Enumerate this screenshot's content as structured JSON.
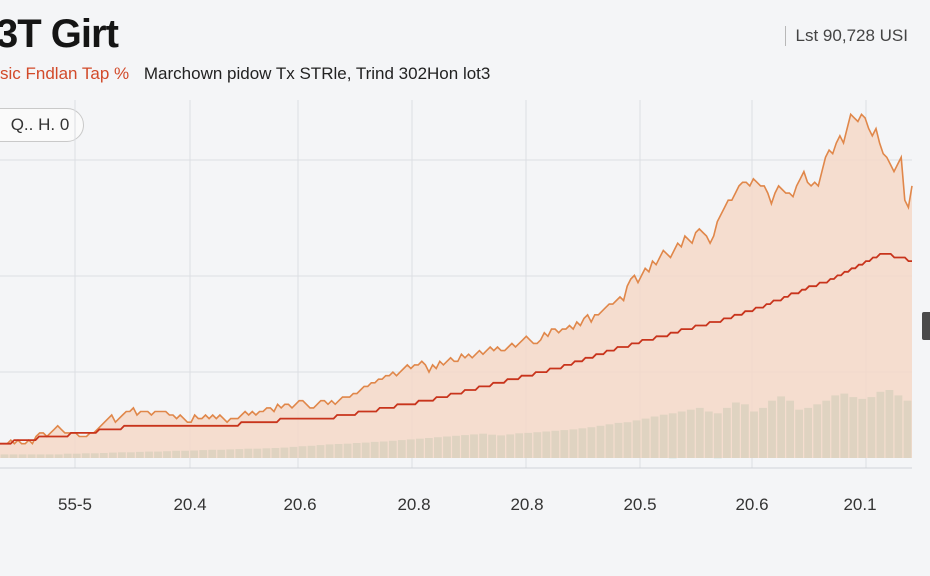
{
  "header": {
    "title": "3T Girt",
    "price": "Lst 90,728 USI",
    "subtitle_accent": "sic Fndlan Tap %",
    "subtitle": "Marchown pidow Tx STRle, Trind 302Hon lot3"
  },
  "controls": {
    "range_label": "Q.. H. 0"
  },
  "colors": {
    "price_line": "#e0874a",
    "price_fill": "#f4d8c8",
    "trend_line": "#c8341c",
    "volume_bar": "#4fa886",
    "grid": "#dcdfe3"
  },
  "chart_data": {
    "type": "line",
    "x_tick_labels": [
      "55-5",
      "20.4",
      "20.6",
      "20.8",
      "20.8",
      "20.5",
      "20.6",
      "20.1"
    ],
    "ylim": [
      0,
      100
    ],
    "grid": true,
    "legend": "none",
    "series": [
      {
        "kind": "area-line",
        "values": [
          4,
          4,
          4,
          5,
          4,
          5,
          4,
          4,
          5,
          4,
          6,
          7,
          7,
          6,
          7,
          8,
          9,
          8,
          7,
          7,
          7,
          7,
          6,
          6,
          6,
          7,
          7,
          8,
          9,
          10,
          11,
          12,
          10,
          11,
          12,
          13,
          13,
          14,
          12,
          13,
          13,
          13,
          12,
          13,
          13,
          13,
          13,
          12,
          12,
          11,
          12,
          11,
          10,
          10,
          12,
          11,
          11,
          12,
          11,
          12,
          11,
          12,
          11,
          10,
          11,
          11,
          11,
          12,
          13,
          12,
          13,
          12,
          13,
          13,
          14,
          14,
          13,
          15,
          14,
          15,
          15,
          14,
          15,
          16,
          16,
          15,
          14,
          14,
          15,
          16,
          16,
          15,
          16,
          15,
          16,
          17,
          17,
          17,
          18,
          18,
          19,
          20,
          20,
          21,
          21,
          22,
          22,
          23,
          23,
          24,
          23,
          24,
          25,
          26,
          25,
          26,
          26,
          27,
          26,
          24,
          26,
          25,
          27,
          26,
          27,
          28,
          27,
          27,
          29,
          28,
          29,
          28,
          29,
          30,
          29,
          30,
          31,
          30,
          31,
          30,
          30,
          31,
          32,
          31,
          32,
          33,
          34,
          33,
          32,
          32,
          33,
          35,
          34,
          36,
          36,
          35,
          36,
          36,
          37,
          36,
          38,
          37,
          39,
          40,
          38,
          40,
          40,
          41,
          42,
          43,
          43,
          44,
          45,
          44,
          48,
          50,
          51,
          49,
          51,
          53,
          52,
          55,
          54,
          56,
          58,
          57,
          56,
          58,
          60,
          59,
          62,
          61,
          60,
          63,
          64,
          63,
          62,
          60,
          62,
          66,
          68,
          70,
          72,
          72,
          74,
          76,
          77,
          77,
          76,
          78,
          77,
          76,
          76,
          74,
          71,
          74,
          76,
          75,
          74,
          74,
          73,
          76,
          78,
          80,
          77,
          76,
          77,
          76,
          80,
          84,
          86,
          85,
          88,
          90,
          88,
          92,
          96,
          95,
          94,
          96,
          95,
          92,
          90,
          92,
          88,
          85,
          84,
          82,
          80,
          82,
          84,
          72,
          70,
          76
        ]
      },
      {
        "kind": "trend-line",
        "values": [
          4,
          4,
          4,
          4,
          5,
          5,
          5,
          5,
          5,
          5,
          5,
          6,
          6,
          6,
          6,
          6,
          6,
          6,
          6,
          6,
          7,
          7,
          7,
          7,
          7,
          7,
          7,
          7,
          8,
          8,
          8,
          8,
          8,
          8,
          8,
          9,
          9,
          9,
          9,
          9,
          9,
          9,
          9,
          9,
          9,
          9,
          9,
          9,
          9,
          9,
          9,
          9,
          9,
          9,
          9,
          9,
          9,
          9,
          9,
          9,
          9,
          9,
          9,
          9,
          9,
          9,
          9,
          9,
          10,
          10,
          10,
          10,
          10,
          10,
          10,
          10,
          10,
          10,
          10,
          11,
          11,
          11,
          11,
          11,
          11,
          11,
          11,
          11,
          11,
          11,
          11,
          11,
          11,
          11,
          11,
          12,
          12,
          12,
          12,
          12,
          12,
          13,
          13,
          13,
          13,
          13,
          13,
          14,
          14,
          14,
          14,
          14,
          15,
          15,
          15,
          15,
          15,
          15,
          16,
          16,
          16,
          16,
          16,
          17,
          17,
          17,
          17,
          18,
          18,
          18,
          18,
          19,
          19,
          19,
          19,
          20,
          20,
          20,
          20,
          21,
          21,
          21,
          21,
          22,
          22,
          22,
          22,
          23,
          23,
          23,
          23,
          24,
          24,
          24,
          24,
          25,
          25,
          25,
          25,
          26,
          26,
          26,
          27,
          27,
          27,
          28,
          28,
          28,
          29,
          29,
          29,
          30,
          30,
          30,
          31,
          31,
          31,
          31,
          32,
          32,
          32,
          33,
          33,
          33,
          33,
          34,
          34,
          34,
          34,
          35,
          35,
          35,
          36,
          36,
          36,
          36,
          37,
          37,
          37,
          37,
          38,
          38,
          38,
          38,
          39,
          39,
          39,
          40,
          40,
          40,
          41,
          41,
          41,
          42,
          42,
          42,
          43,
          43,
          44,
          44,
          44,
          45,
          45,
          46,
          46,
          46,
          47,
          47,
          48,
          48,
          48,
          49,
          49,
          49,
          50,
          50,
          51,
          51,
          52,
          52,
          53,
          53,
          54,
          54,
          55,
          55,
          56,
          56,
          57,
          57,
          57,
          57,
          56,
          56,
          56,
          56,
          55,
          55
        ]
      },
      {
        "kind": "volume-bars",
        "values": [
          1,
          1,
          1,
          1,
          1,
          1,
          1,
          1.2,
          1.2,
          1.3,
          1.3,
          1.4,
          1.5,
          1.6,
          1.6,
          1.7,
          1.8,
          1.8,
          1.9,
          2,
          2,
          2.1,
          2.2,
          2.3,
          2.3,
          2.4,
          2.5,
          2.6,
          2.6,
          2.7,
          2.8,
          2.9,
          3.1,
          3.3,
          3.4,
          3.6,
          3.8,
          3.9,
          4,
          4.2,
          4.3,
          4.5,
          4.6,
          4.8,
          5,
          5.2,
          5.4,
          5.6,
          5.8,
          6,
          6.2,
          6.4,
          6.6,
          6.8,
          6.5,
          6.3,
          6.6,
          6.9,
          7,
          7.2,
          7.4,
          7.6,
          7.8,
          8,
          8.3,
          8.6,
          9,
          9.4,
          9.8,
          10,
          10.5,
          11,
          11.6,
          12.1,
          12.5,
          13,
          13.5,
          14,
          13,
          12.5,
          14,
          15.5,
          15,
          13,
          14,
          16,
          17.2,
          16,
          13.5,
          14,
          15,
          16,
          17.5,
          18,
          17,
          16.5,
          17,
          18.5,
          19,
          17.5,
          16
        ]
      }
    ]
  }
}
